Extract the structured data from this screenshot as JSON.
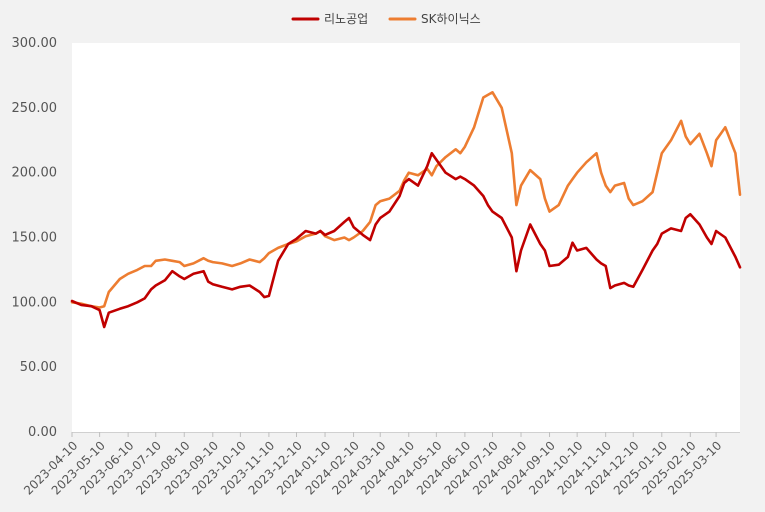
{
  "chart_data": {
    "type": "line",
    "title": "",
    "xlabel": "",
    "ylabel": "",
    "ylim": [
      0,
      300
    ],
    "y_ticks": [
      "300.00",
      "250.00",
      "200.00",
      "150.00",
      "100.00",
      "50.00",
      "0.00"
    ],
    "x_ticks": [
      "2023-04-10",
      "2023-05-10",
      "2023-06-10",
      "2023-07-10",
      "2023-08-10",
      "2023-09-10",
      "2023-10-10",
      "2023-11-10",
      "2023-12-10",
      "2024-01-10",
      "2024-02-10",
      "2024-03-10",
      "2024-04-10",
      "2024-05-10",
      "2024-06-10",
      "2024-07-10",
      "2024-08-10",
      "2024-09-10",
      "2024-10-10",
      "2024-11-10",
      "2024-12-10",
      "2025-01-10",
      "2025-02-10",
      "2025-03-10"
    ],
    "x_range": [
      "2023-04-10",
      "2025-04-05"
    ],
    "grid": false,
    "legend_position": "top-center",
    "series": [
      {
        "name": "리노공업",
        "color": "#c00000",
        "points": [
          [
            "2023-04-10",
            101
          ],
          [
            "2023-04-20",
            98
          ],
          [
            "2023-05-01",
            97
          ],
          [
            "2023-05-10",
            94
          ],
          [
            "2023-05-15",
            81
          ],
          [
            "2023-05-20",
            92
          ],
          [
            "2023-06-01",
            95
          ],
          [
            "2023-06-10",
            97
          ],
          [
            "2023-06-20",
            100
          ],
          [
            "2023-06-28",
            103
          ],
          [
            "2023-07-05",
            110
          ],
          [
            "2023-07-10",
            113
          ],
          [
            "2023-07-20",
            117
          ],
          [
            "2023-07-28",
            124
          ],
          [
            "2023-08-05",
            120
          ],
          [
            "2023-08-10",
            118
          ],
          [
            "2023-08-20",
            122
          ],
          [
            "2023-08-31",
            124
          ],
          [
            "2023-09-05",
            116
          ],
          [
            "2023-09-10",
            114
          ],
          [
            "2023-09-20",
            112
          ],
          [
            "2023-10-01",
            110
          ],
          [
            "2023-10-10",
            112
          ],
          [
            "2023-10-20",
            113
          ],
          [
            "2023-10-31",
            108
          ],
          [
            "2023-11-05",
            104
          ],
          [
            "2023-11-10",
            105
          ],
          [
            "2023-11-20",
            132
          ],
          [
            "2023-12-01",
            145
          ],
          [
            "2023-12-10",
            149
          ],
          [
            "2023-12-20",
            155
          ],
          [
            "2023-12-31",
            153
          ],
          [
            "2024-01-05",
            155
          ],
          [
            "2024-01-10",
            152
          ],
          [
            "2024-01-20",
            155
          ],
          [
            "2024-01-31",
            162
          ],
          [
            "2024-02-05",
            165
          ],
          [
            "2024-02-10",
            158
          ],
          [
            "2024-02-20",
            152
          ],
          [
            "2024-02-28",
            148
          ],
          [
            "2024-03-05",
            160
          ],
          [
            "2024-03-10",
            165
          ],
          [
            "2024-03-20",
            170
          ],
          [
            "2024-03-31",
            182
          ],
          [
            "2024-04-05",
            192
          ],
          [
            "2024-04-10",
            195
          ],
          [
            "2024-04-20",
            190
          ],
          [
            "2024-04-30",
            205
          ],
          [
            "2024-05-05",
            215
          ],
          [
            "2024-05-10",
            210
          ],
          [
            "2024-05-20",
            200
          ],
          [
            "2024-05-31",
            195
          ],
          [
            "2024-06-05",
            197
          ],
          [
            "2024-06-10",
            195
          ],
          [
            "2024-06-20",
            190
          ],
          [
            "2024-06-30",
            182
          ],
          [
            "2024-07-05",
            175
          ],
          [
            "2024-07-10",
            170
          ],
          [
            "2024-07-20",
            165
          ],
          [
            "2024-07-31",
            150
          ],
          [
            "2024-08-05",
            124
          ],
          [
            "2024-08-10",
            140
          ],
          [
            "2024-08-20",
            160
          ],
          [
            "2024-08-31",
            145
          ],
          [
            "2024-09-05",
            140
          ],
          [
            "2024-09-10",
            128
          ],
          [
            "2024-09-20",
            129
          ],
          [
            "2024-09-30",
            135
          ],
          [
            "2024-10-05",
            146
          ],
          [
            "2024-10-10",
            140
          ],
          [
            "2024-10-20",
            142
          ],
          [
            "2024-10-31",
            133
          ],
          [
            "2024-11-05",
            130
          ],
          [
            "2024-11-10",
            128
          ],
          [
            "2024-11-15",
            111
          ],
          [
            "2024-11-20",
            113
          ],
          [
            "2024-11-30",
            115
          ],
          [
            "2024-12-05",
            113
          ],
          [
            "2024-12-10",
            112
          ],
          [
            "2024-12-20",
            125
          ],
          [
            "2024-12-31",
            140
          ],
          [
            "2025-01-05",
            145
          ],
          [
            "2025-01-10",
            153
          ],
          [
            "2025-01-20",
            157
          ],
          [
            "2025-01-31",
            155
          ],
          [
            "2025-02-05",
            165
          ],
          [
            "2025-02-10",
            168
          ],
          [
            "2025-02-20",
            160
          ],
          [
            "2025-02-28",
            150
          ],
          [
            "2025-03-05",
            145
          ],
          [
            "2025-03-10",
            155
          ],
          [
            "2025-03-20",
            150
          ],
          [
            "2025-03-31",
            135
          ],
          [
            "2025-04-05",
            127
          ]
        ]
      },
      {
        "name": "SK하이닉스",
        "color": "#ed7d31",
        "points": [
          [
            "2023-04-10",
            100
          ],
          [
            "2023-04-20",
            99
          ],
          [
            "2023-05-01",
            97
          ],
          [
            "2023-05-10",
            96
          ],
          [
            "2023-05-15",
            97
          ],
          [
            "2023-05-20",
            108
          ],
          [
            "2023-06-01",
            118
          ],
          [
            "2023-06-10",
            122
          ],
          [
            "2023-06-20",
            125
          ],
          [
            "2023-06-28",
            128
          ],
          [
            "2023-07-05",
            128
          ],
          [
            "2023-07-10",
            132
          ],
          [
            "2023-07-20",
            133
          ],
          [
            "2023-07-28",
            132
          ],
          [
            "2023-08-05",
            131
          ],
          [
            "2023-08-10",
            128
          ],
          [
            "2023-08-20",
            130
          ],
          [
            "2023-08-31",
            134
          ],
          [
            "2023-09-05",
            132
          ],
          [
            "2023-09-10",
            131
          ],
          [
            "2023-09-20",
            130
          ],
          [
            "2023-10-01",
            128
          ],
          [
            "2023-10-10",
            130
          ],
          [
            "2023-10-20",
            133
          ],
          [
            "2023-10-31",
            131
          ],
          [
            "2023-11-05",
            134
          ],
          [
            "2023-11-10",
            138
          ],
          [
            "2023-11-20",
            142
          ],
          [
            "2023-12-01",
            145
          ],
          [
            "2023-12-10",
            147
          ],
          [
            "2023-12-20",
            151
          ],
          [
            "2023-12-31",
            153
          ],
          [
            "2024-01-05",
            155
          ],
          [
            "2024-01-10",
            151
          ],
          [
            "2024-01-20",
            148
          ],
          [
            "2024-01-31",
            150
          ],
          [
            "2024-02-05",
            148
          ],
          [
            "2024-02-10",
            150
          ],
          [
            "2024-02-20",
            155
          ],
          [
            "2024-02-28",
            162
          ],
          [
            "2024-03-05",
            175
          ],
          [
            "2024-03-10",
            178
          ],
          [
            "2024-03-20",
            180
          ],
          [
            "2024-03-31",
            186
          ],
          [
            "2024-04-05",
            194
          ],
          [
            "2024-04-10",
            200
          ],
          [
            "2024-04-20",
            198
          ],
          [
            "2024-04-30",
            203
          ],
          [
            "2024-05-05",
            198
          ],
          [
            "2024-05-10",
            205
          ],
          [
            "2024-05-20",
            212
          ],
          [
            "2024-05-31",
            218
          ],
          [
            "2024-06-05",
            215
          ],
          [
            "2024-06-10",
            220
          ],
          [
            "2024-06-20",
            235
          ],
          [
            "2024-06-30",
            258
          ],
          [
            "2024-07-05",
            260
          ],
          [
            "2024-07-10",
            262
          ],
          [
            "2024-07-20",
            250
          ],
          [
            "2024-07-31",
            215
          ],
          [
            "2024-08-05",
            175
          ],
          [
            "2024-08-10",
            190
          ],
          [
            "2024-08-20",
            202
          ],
          [
            "2024-08-31",
            195
          ],
          [
            "2024-09-05",
            180
          ],
          [
            "2024-09-10",
            170
          ],
          [
            "2024-09-20",
            175
          ],
          [
            "2024-09-30",
            190
          ],
          [
            "2024-10-05",
            195
          ],
          [
            "2024-10-10",
            200
          ],
          [
            "2024-10-20",
            208
          ],
          [
            "2024-10-31",
            215
          ],
          [
            "2024-11-05",
            200
          ],
          [
            "2024-11-10",
            190
          ],
          [
            "2024-11-15",
            185
          ],
          [
            "2024-11-20",
            190
          ],
          [
            "2024-11-30",
            192
          ],
          [
            "2024-12-05",
            180
          ],
          [
            "2024-12-10",
            175
          ],
          [
            "2024-12-20",
            178
          ],
          [
            "2024-12-31",
            185
          ],
          [
            "2025-01-05",
            200
          ],
          [
            "2025-01-10",
            215
          ],
          [
            "2025-01-20",
            225
          ],
          [
            "2025-01-31",
            240
          ],
          [
            "2025-02-05",
            228
          ],
          [
            "2025-02-10",
            222
          ],
          [
            "2025-02-20",
            230
          ],
          [
            "2025-02-28",
            215
          ],
          [
            "2025-03-05",
            205
          ],
          [
            "2025-03-10",
            225
          ],
          [
            "2025-03-20",
            235
          ],
          [
            "2025-03-31",
            215
          ],
          [
            "2025-04-05",
            183
          ]
        ]
      }
    ]
  }
}
